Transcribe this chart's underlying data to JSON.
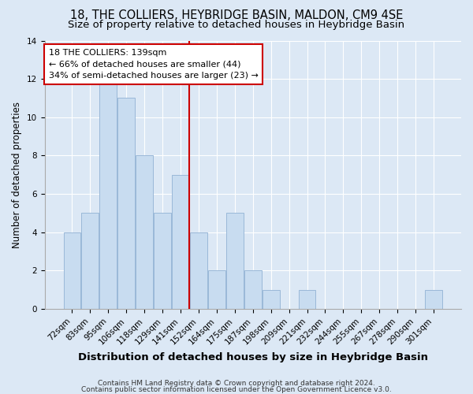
{
  "title": "18, THE COLLIERS, HEYBRIDGE BASIN, MALDON, CM9 4SE",
  "subtitle": "Size of property relative to detached houses in Heybridge Basin",
  "xlabel": "Distribution of detached houses by size in Heybridge Basin",
  "ylabel": "Number of detached properties",
  "footer1": "Contains HM Land Registry data © Crown copyright and database right 2024.",
  "footer2": "Contains public sector information licensed under the Open Government Licence v3.0.",
  "bar_labels": [
    "72sqm",
    "83sqm",
    "95sqm",
    "106sqm",
    "118sqm",
    "129sqm",
    "141sqm",
    "152sqm",
    "164sqm",
    "175sqm",
    "187sqm",
    "198sqm",
    "209sqm",
    "221sqm",
    "232sqm",
    "244sqm",
    "255sqm",
    "267sqm",
    "278sqm",
    "290sqm",
    "301sqm"
  ],
  "bar_values": [
    4,
    5,
    12,
    11,
    8,
    5,
    7,
    4,
    2,
    5,
    2,
    1,
    0,
    1,
    0,
    0,
    0,
    0,
    0,
    0,
    1
  ],
  "bar_color": "#c8dcf0",
  "bar_edge_color": "#9ab8d8",
  "ref_line_index": 6,
  "ref_line_color": "#cc0000",
  "annotation_title": "18 THE COLLIERS: 139sqm",
  "annotation_line1": "← 66% of detached houses are smaller (44)",
  "annotation_line2": "34% of semi-detached houses are larger (23) →",
  "annotation_box_color": "#ffffff",
  "annotation_box_edge": "#cc0000",
  "ylim": [
    0,
    14
  ],
  "yticks": [
    0,
    2,
    4,
    6,
    8,
    10,
    12,
    14
  ],
  "background_color": "#dce8f5",
  "plot_background_color": "#dce8f5",
  "title_fontsize": 10.5,
  "subtitle_fontsize": 9.5,
  "xlabel_fontsize": 9.5,
  "ylabel_fontsize": 8.5,
  "tick_fontsize": 7.5,
  "footer_fontsize": 6.5
}
